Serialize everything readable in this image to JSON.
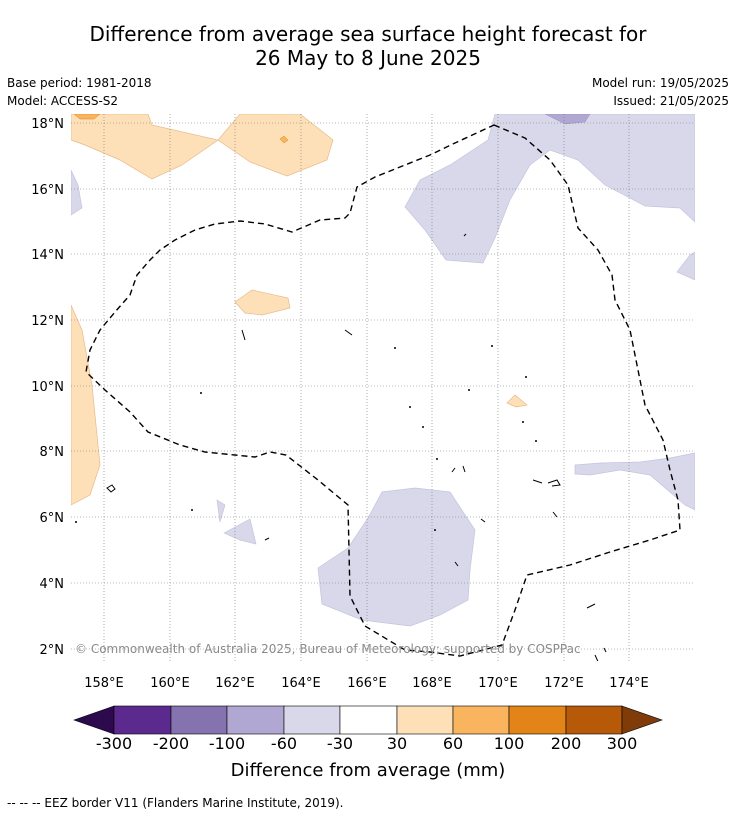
{
  "title_line1": "Difference from average sea surface height forecast for",
  "title_line2": "26 May to 8 June 2025",
  "base_period": "Base period: 1981-2018",
  "model": "Model: ACCESS-S2",
  "model_run": "Model run: 19/05/2025",
  "issued": "Issued: 21/05/2025",
  "lat_labels": [
    "18°N",
    "16°N",
    "14°N",
    "12°N",
    "10°N",
    "8°N",
    "6°N",
    "4°N",
    "2°N"
  ],
  "lon_labels": [
    "158°E",
    "160°E",
    "162°E",
    "164°E",
    "166°E",
    "168°E",
    "170°E",
    "172°E",
    "174°E"
  ],
  "copyright": "© Commonwealth of Australia 2025, Bureau of Meteorology; supported by COSPPac",
  "colorbar": {
    "ticks": [
      "-300",
      "-200",
      "-100",
      "-60",
      "-30",
      "30",
      "60",
      "100",
      "200",
      "300"
    ],
    "colors": [
      "#2d0a4e",
      "#5c2a8e",
      "#8573b0",
      "#b0a8d2",
      "#d8d8ea",
      "#ffffff",
      "#fde0b8",
      "#f9b45f",
      "#e38418",
      "#b65a0a",
      "#7f3b08"
    ],
    "label": "Difference from average (mm)"
  },
  "footer": "--  --  -- EEZ border V11 (Flanders Marine Institute, 2019)."
}
